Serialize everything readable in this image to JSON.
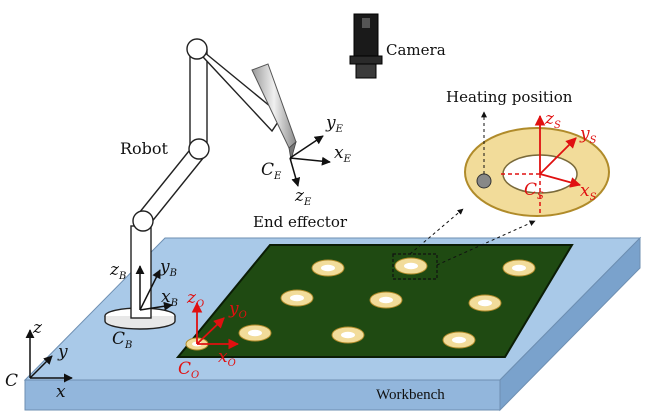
{
  "labels": {
    "camera": "Camera",
    "robot": "Robot",
    "end_effector": "End effector",
    "heating_position": "Heating position",
    "workbench": "Workbench"
  },
  "frames": {
    "world": {
      "origin": "C",
      "x": "x",
      "y": "y",
      "z": "z"
    },
    "base": {
      "origin": "C",
      "origin_sub": "B",
      "x": "x",
      "x_sub": "B",
      "y": "y",
      "y_sub": "B",
      "z": "z",
      "z_sub": "B"
    },
    "end_effector": {
      "origin": "C",
      "origin_sub": "E",
      "x": "x",
      "x_sub": "E",
      "y": "y",
      "y_sub": "E",
      "z": "z",
      "z_sub": "E"
    },
    "board": {
      "origin": "C",
      "origin_sub": "O",
      "x": "x",
      "x_sub": "O",
      "y": "y",
      "y_sub": "O",
      "z": "z",
      "z_sub": "O"
    },
    "pad": {
      "origin": "C",
      "origin_sub": "S",
      "x": "x",
      "x_sub": "S",
      "y": "y",
      "y_sub": "S",
      "z": "z",
      "z_sub": "S"
    }
  },
  "colors": {
    "workbench_top": "#a9c9e8",
    "workbench_side": "#86acd3",
    "board": "#1f4a12",
    "pad_ring": "#f2dc9a",
    "pad_border": "#b08b2a",
    "red_axes": "#e01010"
  }
}
